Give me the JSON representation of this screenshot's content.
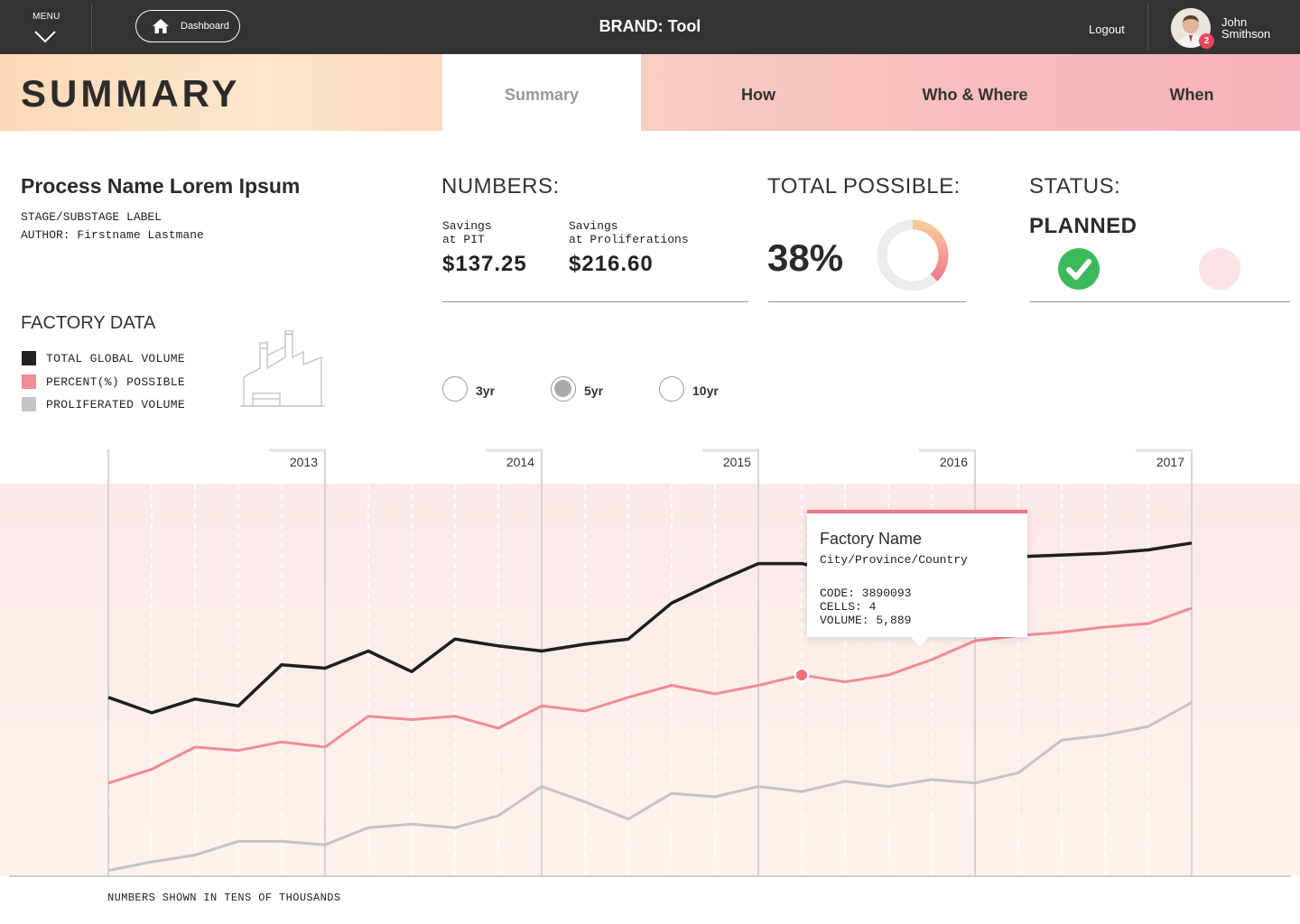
{
  "topbar": {
    "menu_label": "MENU",
    "dashboard_label": "Dashboard",
    "brand": "BRAND: Tool",
    "logout_label": "Logout",
    "user_first": "John",
    "user_last": "Smithson",
    "notification_count": "2",
    "colors": {
      "bar": "#333333",
      "badge": "#e8485c"
    }
  },
  "page": {
    "title": "SUMMARY",
    "tabs": [
      {
        "label": "Summary",
        "active": true
      },
      {
        "label": "How",
        "active": false
      },
      {
        "label": "Who & Where",
        "active": false
      },
      {
        "label": "When",
        "active": false
      }
    ]
  },
  "process": {
    "name": "Process Name Lorem Ipsum",
    "stage": "STAGE/SUBSTAGE LABEL",
    "author": "AUTHOR: Firstname Lastmane"
  },
  "numbers": {
    "heading": "NUMBERS:",
    "items": [
      {
        "label": "Savings\nat PIT",
        "value": "$137.25"
      },
      {
        "label": "Savings\nat Proliferations",
        "value": "$216.60"
      }
    ]
  },
  "total_possible": {
    "heading": "TOTAL POSSIBLE:",
    "value": "38%",
    "fraction": 0.38
  },
  "status": {
    "heading": "STATUS:",
    "value": "PLANNED",
    "state_icons": [
      "check-circle-icon",
      "empty-circle-icon"
    ],
    "colors": {
      "done": "#3cba5b",
      "pending": "#fde3e5"
    }
  },
  "factory": {
    "heading": "FACTORY DATA",
    "legend": [
      {
        "label": "TOTAL GLOBAL VOLUME",
        "color": "#222222"
      },
      {
        "label": "PERCENT(%) POSSIBLE",
        "color": "#f28b93"
      },
      {
        "label": "PROLIFERATED VOLUME",
        "color": "#c4c4c4"
      }
    ]
  },
  "range": {
    "options": [
      "3yr",
      "5yr",
      "10yr"
    ],
    "selected": "5yr"
  },
  "tooltip": {
    "name": "Factory Name",
    "location": "City/Province/Country",
    "code": "CODE: 3890093",
    "cells": "CELLS: 4",
    "volume": "VOLUME: 5,889"
  },
  "chart_data": {
    "type": "line",
    "x": [
      "2012-07",
      "2012-09",
      "2012-11",
      "2013-01",
      "2013-03",
      "2013-05",
      "2013-07",
      "2013-09",
      "2013-11",
      "2014-01",
      "2014-03",
      "2014-05",
      "2014-07",
      "2014-09",
      "2014-11",
      "2015-01",
      "2015-03",
      "2015-05",
      "2015-07",
      "2015-09",
      "2015-11",
      "2016-01",
      "2016-03",
      "2016-05",
      "2016-07",
      "2016-09"
    ],
    "x_tick_labels": [
      "2013",
      "2014",
      "2015",
      "2016",
      "2017"
    ],
    "series": [
      {
        "name": "TOTAL GLOBAL VOLUME",
        "color": "#1f1f1f",
        "values": [
          54,
          49.5,
          53.5,
          51.5,
          63.5,
          62.5,
          67.5,
          61.5,
          71,
          69,
          67.5,
          69.5,
          71,
          81.5,
          87.5,
          93,
          93,
          90.5,
          92.5,
          93.5,
          95,
          95,
          95.5,
          96,
          97,
          99
        ]
      },
      {
        "name": "PERCENT(%) POSSIBLE",
        "color": "#f28b93",
        "values": [
          29,
          33,
          39.5,
          38.5,
          41,
          39.5,
          48.5,
          47.5,
          48.5,
          45,
          51.5,
          50,
          54,
          57.5,
          55,
          57.5,
          60.5,
          58.5,
          60.5,
          65,
          70.5,
          72,
          73,
          74.5,
          75.5,
          80
        ]
      },
      {
        "name": "PROLIFERATED VOLUME",
        "color": "#c4c4c4",
        "values": [
          3.5,
          6,
          8,
          12,
          12,
          11,
          16,
          17,
          16,
          19.5,
          28,
          23.5,
          18.5,
          26,
          25,
          28,
          26.5,
          29.5,
          28,
          30,
          29,
          32,
          41.5,
          43,
          45.5,
          52.5
        ]
      }
    ],
    "ylim": [
      0,
      100
    ],
    "highlight": {
      "series": "PERCENT(%) POSSIBLE",
      "index": 16
    },
    "footnote": "NUMBERS SHOWN IN TENS OF THOUSANDS",
    "background_colors": [
      "#fbe8e8",
      "#fdf3ee"
    ]
  }
}
